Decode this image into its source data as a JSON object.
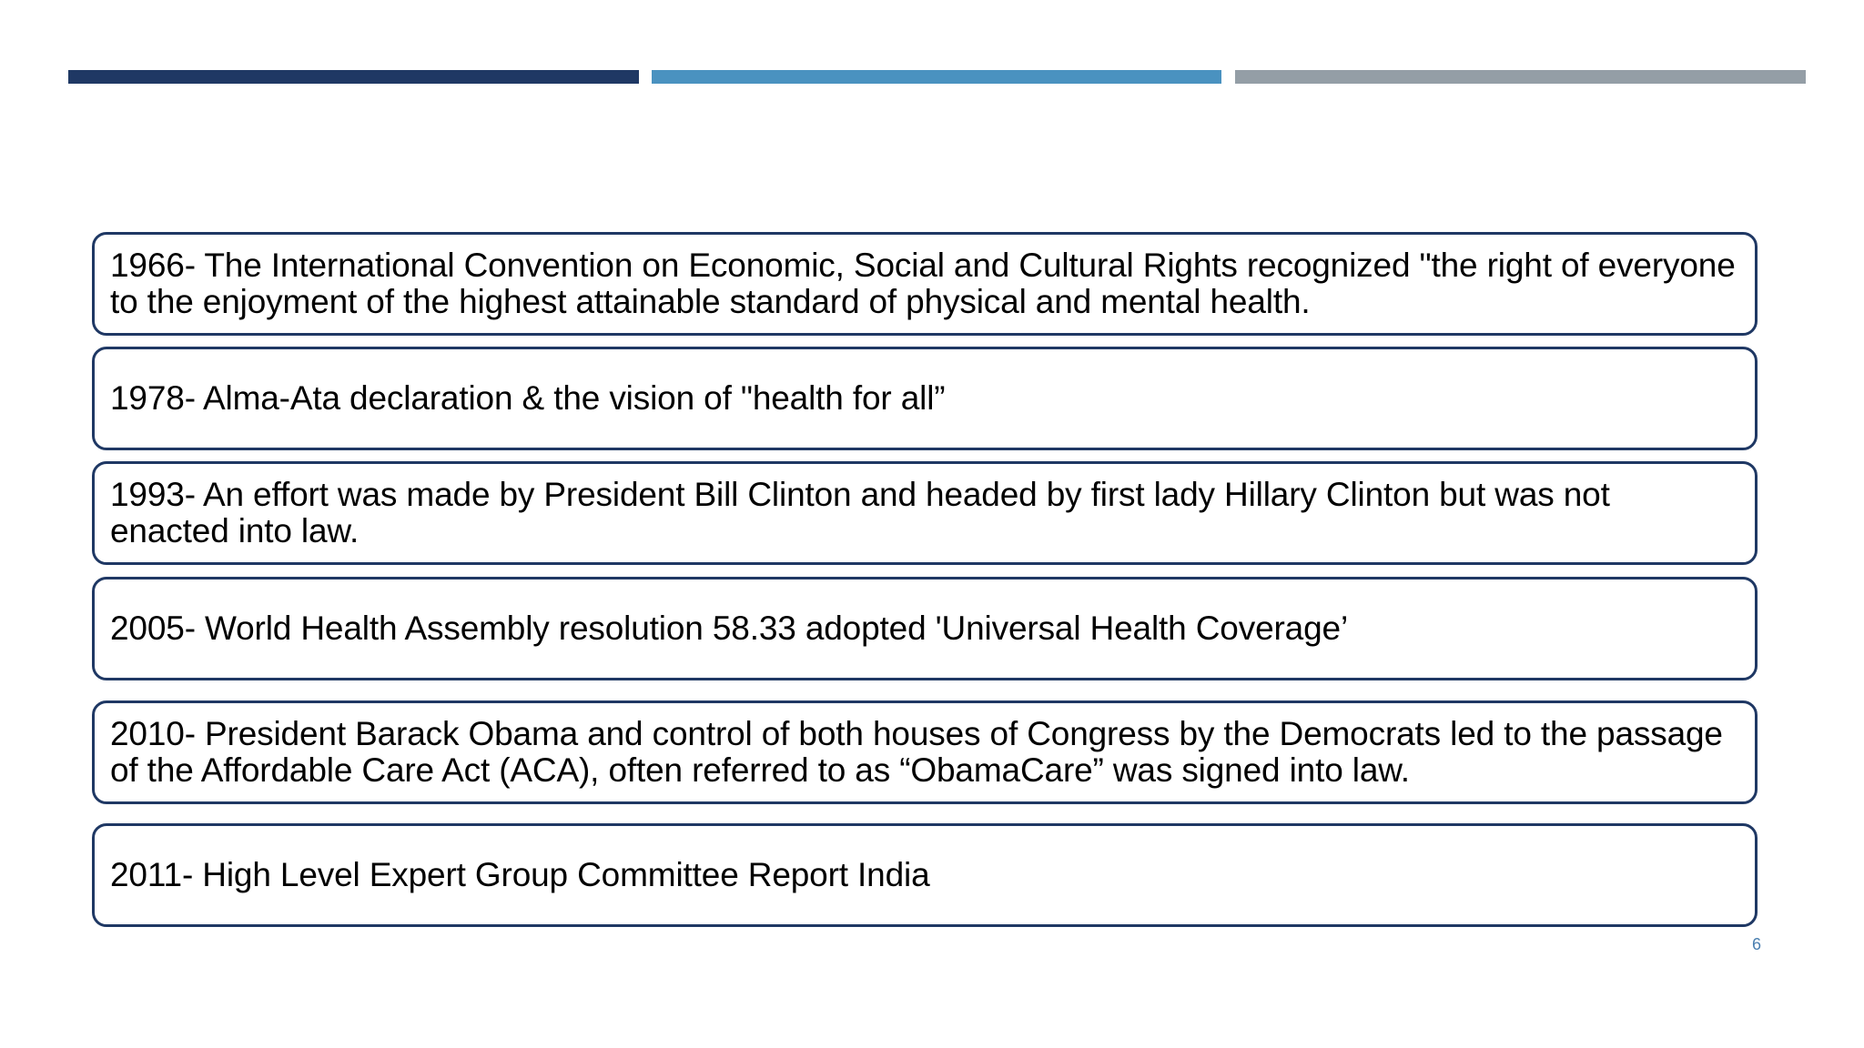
{
  "slide": {
    "accent_colors": [
      "#1f3864",
      "#4a92c0",
      "#949ea6"
    ],
    "border_color": "#1f3864",
    "items": [
      {
        "text": "1966- The International Convention on Economic, Social and Cultural Rights recognized \"the right of everyone to the enjoyment of the highest attainable standard of physical and mental health."
      },
      {
        "text": "1978- Alma-Ata declaration & the vision of \"health for all”"
      },
      {
        "text": "1993- An effort was made by President Bill Clinton and headed by first lady Hillary Clinton but was not enacted into law."
      },
      {
        "text": "2005- World Health Assembly resolution 58.33 adopted 'Universal Health Coverage’"
      },
      {
        "text": "2010- President Barack Obama and control of both houses of Congress by the Democrats led to the passage of the Affordable Care Act (ACA), often referred to as “ObamaCare” was signed into law."
      },
      {
        "text": "2011- High Level Expert Group Committee Report India"
      }
    ],
    "page_number": "6"
  }
}
